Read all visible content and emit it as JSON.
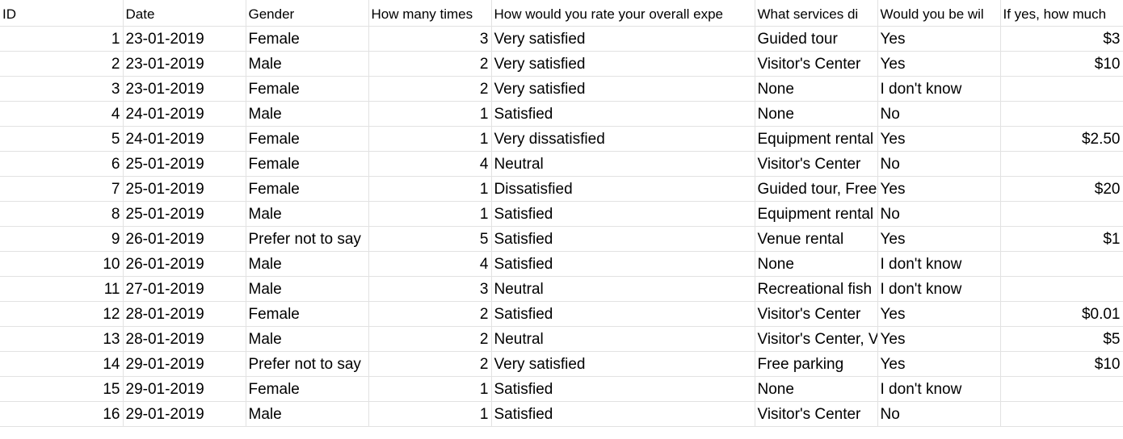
{
  "sheet": {
    "headers": [
      "ID",
      "Date",
      "Gender",
      "How many times",
      "How would you rate your overall expe",
      "What services di",
      "Would you be wil",
      "If yes, how much"
    ],
    "rows": [
      [
        "1",
        "23-01-2019",
        "Female",
        "3",
        "Very satisfied",
        "Guided tour",
        "Yes",
        "$3"
      ],
      [
        "2",
        "23-01-2019",
        "Male",
        "2",
        "Very satisfied",
        "Visitor's Center",
        "Yes",
        "$10"
      ],
      [
        "3",
        "23-01-2019",
        "Female",
        "2",
        "Very satisfied",
        "None",
        "I don't know",
        ""
      ],
      [
        "4",
        "24-01-2019",
        "Male",
        "1",
        "Satisfied",
        "None",
        "No",
        ""
      ],
      [
        "5",
        "24-01-2019",
        "Female",
        "1",
        "Very dissatisfied",
        "Equipment rental",
        "Yes",
        "$2.50"
      ],
      [
        "6",
        "25-01-2019",
        "Female",
        "4",
        "Neutral",
        "Visitor's Center",
        "No",
        ""
      ],
      [
        "7",
        "25-01-2019",
        "Female",
        "1",
        "Dissatisfied",
        "Guided tour, Free",
        "Yes",
        "$20"
      ],
      [
        "8",
        "25-01-2019",
        "Male",
        "1",
        "Satisfied",
        "Equipment rental",
        "No",
        ""
      ],
      [
        "9",
        "26-01-2019",
        "Prefer not to say",
        "5",
        "Satisfied",
        "Venue rental",
        "Yes",
        "$1"
      ],
      [
        "10",
        "26-01-2019",
        "Male",
        "4",
        "Satisfied",
        "None",
        "I don't know",
        ""
      ],
      [
        "11",
        "27-01-2019",
        "Male",
        "3",
        "Neutral",
        "Recreational fish",
        "I don't know",
        ""
      ],
      [
        "12",
        "28-01-2019",
        "Female",
        "2",
        "Satisfied",
        "Visitor's Center",
        "Yes",
        "$0.01"
      ],
      [
        "13",
        "28-01-2019",
        "Male",
        "2",
        "Neutral",
        "Visitor's Center, V",
        "Yes",
        "$5"
      ],
      [
        "14",
        "29-01-2019",
        "Prefer not to say",
        "2",
        "Very satisfied",
        "Free parking",
        "Yes",
        "$10"
      ],
      [
        "15",
        "29-01-2019",
        "Female",
        "1",
        "Satisfied",
        "None",
        "I don't know",
        ""
      ],
      [
        "16",
        "29-01-2019",
        "Male",
        "1",
        "Satisfied",
        "Visitor's Center",
        "No",
        ""
      ]
    ]
  }
}
